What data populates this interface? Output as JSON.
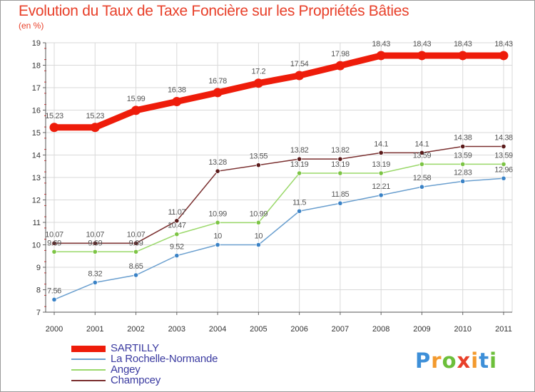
{
  "header": {
    "title": "Evolution du Taux de Taxe Foncière sur les Propriétés Bâties",
    "subtitle": "(en %)"
  },
  "brand": {
    "text": "Proxiti",
    "colors": [
      "#3d8fd8",
      "#f39a2e",
      "#6cbf3a",
      "#e8402a"
    ]
  },
  "chart_data": {
    "type": "line",
    "title": "Evolution du Taux de Taxe Foncière sur les Propriétés Bâties",
    "ylabel": "(en %)",
    "xlabel": "",
    "x": [
      "2000",
      "2001",
      "2002",
      "2003",
      "2004",
      "2005",
      "2006",
      "2007",
      "2008",
      "2009",
      "2010",
      "2011"
    ],
    "ylim": [
      7,
      19
    ],
    "yticks": [
      7,
      8,
      9,
      10,
      11,
      12,
      13,
      14,
      15,
      16,
      17,
      18,
      19
    ],
    "grid": true,
    "legend_position": "bottom-left",
    "series": [
      {
        "name": "SARTILLY",
        "color": "#ee1c0a",
        "point_color": "#ee1c0a",
        "emphasis": true,
        "values": [
          15.23,
          15.23,
          15.99,
          16.38,
          16.78,
          17.2,
          17.54,
          17.98,
          18.43,
          18.43,
          18.43,
          18.43
        ],
        "labels": [
          "15.23",
          "15.23",
          "15.99",
          "16.38",
          "16.78",
          "17.2",
          "17.54",
          "17.98",
          "18.43",
          "18.43",
          "18.43",
          "18.43"
        ]
      },
      {
        "name": "La Rochelle-Normande",
        "color": "#6a9fcf",
        "point_color": "#3a82c6",
        "emphasis": false,
        "values": [
          7.56,
          8.32,
          8.65,
          9.52,
          10,
          10,
          11.5,
          11.85,
          12.21,
          12.58,
          12.83,
          12.96
        ],
        "labels": [
          "7.56",
          "8.32",
          "8.65",
          "9.52",
          "10",
          "10",
          "11.5",
          "11.85",
          "12.21",
          "12.58",
          "12.83",
          "12.96"
        ]
      },
      {
        "name": "Angey",
        "color": "#9ad86a",
        "point_color": "#7cc444",
        "emphasis": false,
        "values": [
          9.69,
          9.69,
          9.69,
          10.47,
          10.99,
          10.99,
          13.19,
          13.19,
          13.19,
          13.59,
          13.59,
          13.59
        ],
        "labels": [
          "9.69",
          "9.69",
          "9.69",
          "10.47",
          "10.99",
          "10.99",
          "13.19",
          "13.19",
          "13.19",
          "13.59",
          "13.59",
          "13.59"
        ]
      },
      {
        "name": "Champcey",
        "color": "#7a2f2f",
        "point_color": "#5a1a1a",
        "emphasis": false,
        "values": [
          10.07,
          10.07,
          10.07,
          11.07,
          13.28,
          13.55,
          13.82,
          13.82,
          14.1,
          14.1,
          14.38,
          14.38
        ],
        "labels": [
          "10.07",
          "10.07",
          "10.07",
          "11.07",
          "13.28",
          "13.55",
          "13.82",
          "13.82",
          "14.1",
          "14.1",
          "14.38",
          "14.38"
        ]
      }
    ]
  }
}
